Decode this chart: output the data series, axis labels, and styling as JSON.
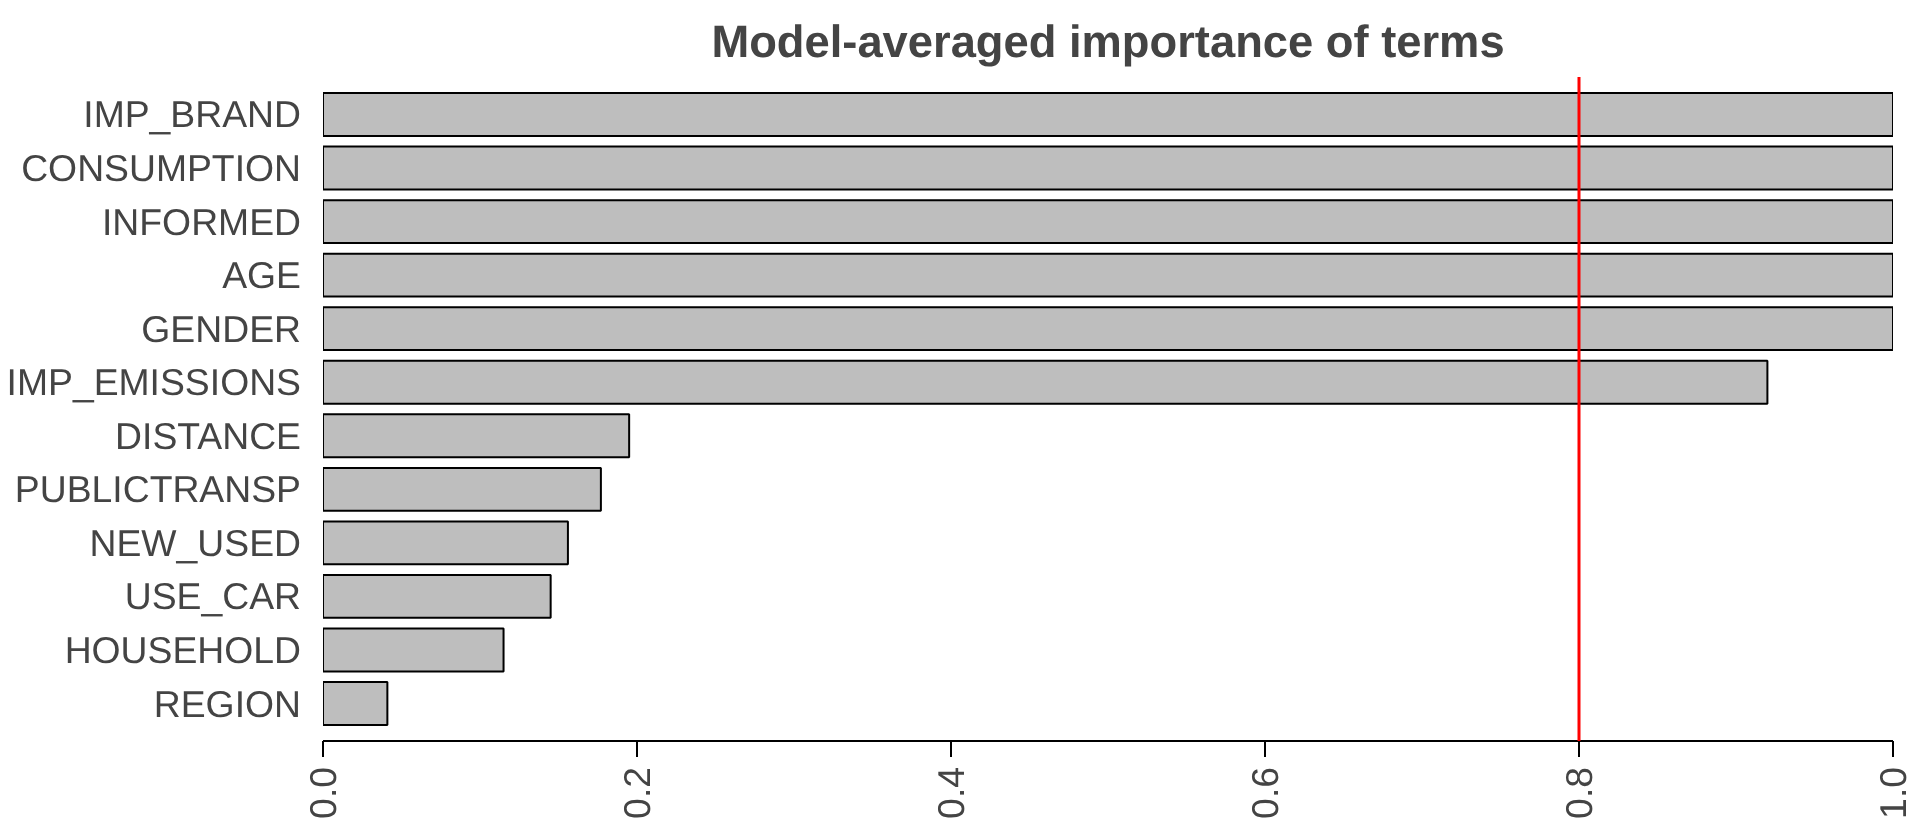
{
  "chart_data": {
    "type": "bar",
    "orientation": "horizontal",
    "title": "Model-averaged importance of terms",
    "categories": [
      "IMP_BRAND",
      "CONSUMPTION",
      "INFORMED",
      "AGE",
      "GENDER",
      "IMP_EMISSIONS",
      "DISTANCE",
      "PUBLICTRANSP",
      "NEW_USED",
      "USE_CAR",
      "HOUSEHOLD",
      "REGION"
    ],
    "values": [
      1.0,
      1.0,
      1.0,
      1.0,
      1.0,
      0.92,
      0.195,
      0.177,
      0.156,
      0.145,
      0.115,
      0.041
    ],
    "color": "#bebebe",
    "xlim": [
      0,
      1
    ],
    "xticks": [
      {
        "value": 0,
        "label": "0.0"
      },
      0.2,
      0.4,
      0.6,
      0.8,
      {
        "value": 1,
        "label": "1.0"
      }
    ],
    "ref_lines": [
      {
        "axis": "x",
        "value": 0.8,
        "color": "#ff0000"
      }
    ],
    "grid": false
  }
}
